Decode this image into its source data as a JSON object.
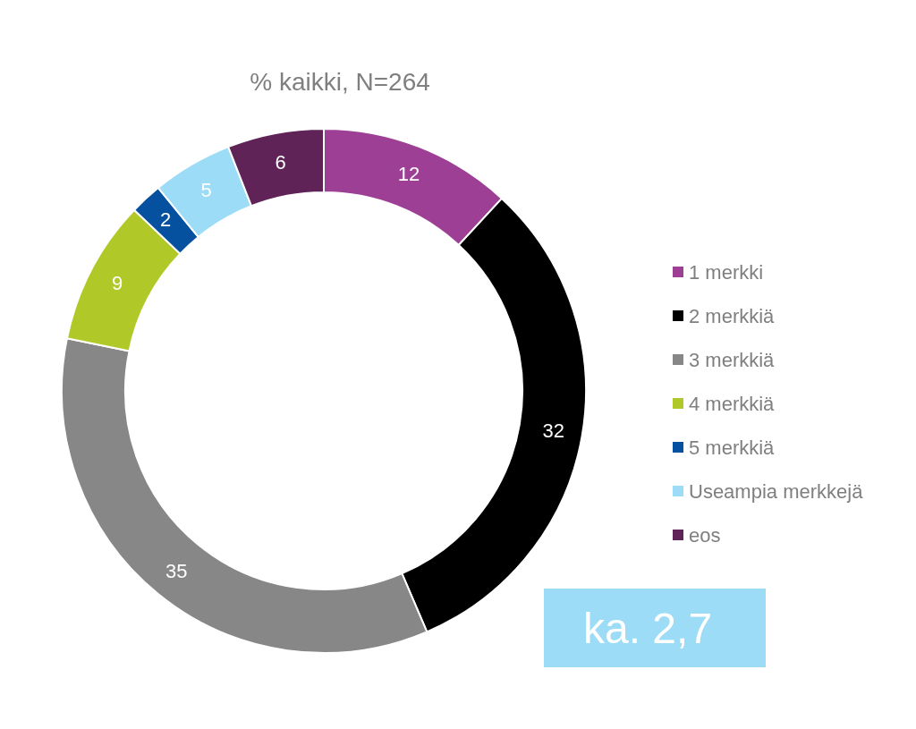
{
  "chart_data": {
    "type": "donut",
    "title": "% kaikki, N=264",
    "categories": [
      "1 merkki",
      "2 merkkiä",
      "3 merkkiä",
      "4 merkkiä",
      "5 merkkiä",
      "Useampia merkkejä",
      "eos"
    ],
    "values": [
      12,
      32,
      35,
      9,
      2,
      5,
      6
    ],
    "colors": [
      "#9e3f96",
      "#000000",
      "#878787",
      "#b1c928",
      "#0650a0",
      "#9ddcf6",
      "#5f2358"
    ],
    "data_labels": true,
    "legend": "right",
    "annotations": [
      "ka. 2,7"
    ]
  }
}
